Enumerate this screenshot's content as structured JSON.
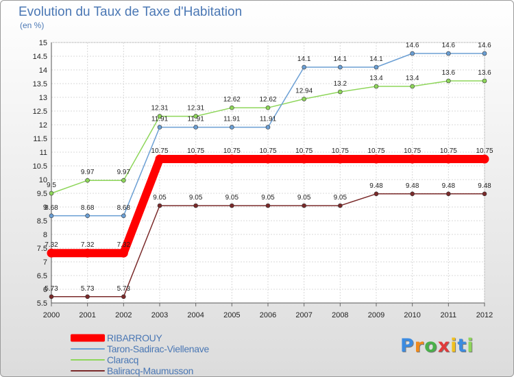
{
  "chart_data": {
    "type": "line",
    "title": "Evolution du Taux de Taxe d'Habitation",
    "ylabel": "(en %)",
    "x": [
      "2000",
      "2001",
      "2002",
      "2003",
      "2004",
      "2005",
      "2006",
      "2007",
      "2008",
      "2009",
      "2010",
      "2011",
      "2012"
    ],
    "ylim": [
      5.5,
      15
    ],
    "yticks": [
      "5.5",
      "6",
      "6.5",
      "7",
      "7.5",
      "8",
      "8.5",
      "9",
      "9.5",
      "10",
      "10.5",
      "11",
      "11.5",
      "12",
      "12.5",
      "13",
      "13.5",
      "14",
      "14.5",
      "15"
    ],
    "grid": true,
    "legend_position": "bottom-left",
    "series": [
      {
        "name": "RIBARROUY",
        "color": "#ff0000",
        "values": [
          7.32,
          7.32,
          7.32,
          10.75,
          10.75,
          10.75,
          10.75,
          10.75,
          10.75,
          10.75,
          10.75,
          10.75,
          10.75
        ],
        "labels": [
          "7.32",
          "7.32",
          "7.32",
          "10.75",
          "10.75",
          "10.75",
          "10.75",
          "10.75",
          "10.75",
          "10.75",
          "10.75",
          "10.75",
          "10.75"
        ]
      },
      {
        "name": "Taron-Sadirac-Viellenave",
        "color": "#6b9fd4",
        "values": [
          8.68,
          8.68,
          8.68,
          11.91,
          11.91,
          11.91,
          11.91,
          14.1,
          14.1,
          14.1,
          14.6,
          14.6,
          14.6
        ],
        "labels": [
          "8.68",
          "8.68",
          "8.68",
          "11.91",
          "11.91",
          "11.91",
          "11.91",
          "14.1",
          "14.1",
          "14.1",
          "14.6",
          "14.6",
          "14.6"
        ]
      },
      {
        "name": "Claracq",
        "color": "#8ed65a",
        "values": [
          9.5,
          9.97,
          9.97,
          12.31,
          12.31,
          12.62,
          12.62,
          12.94,
          13.2,
          13.4,
          13.4,
          13.6,
          13.6
        ],
        "labels": [
          "9.5",
          "9.97",
          "9.97",
          "12.31",
          "12.31",
          "12.62",
          "12.62",
          "12.94",
          "13.2",
          "13.4",
          "13.4",
          "13.6",
          "13.6"
        ]
      },
      {
        "name": "Baliracq-Maumusson",
        "color": "#7a2a2a",
        "values": [
          5.73,
          5.73,
          5.73,
          9.05,
          9.05,
          9.05,
          9.05,
          9.05,
          9.05,
          9.48,
          9.48,
          9.48,
          9.48
        ],
        "labels": [
          "5.73",
          "5.73",
          "5.73",
          "9.05",
          "9.05",
          "9.05",
          "9.05",
          "9.05",
          "9.05",
          "9.48",
          "9.48",
          "9.48",
          "9.48"
        ]
      }
    ]
  },
  "logo": {
    "letters": [
      "P",
      "r",
      "o",
      "x",
      "i",
      "t",
      "i"
    ],
    "colors": [
      "#3c8be0",
      "#f08a1c",
      "#4ab04a",
      "#e03a3a",
      "#f0c020",
      "#3c8be0",
      "#8ed65a"
    ]
  }
}
